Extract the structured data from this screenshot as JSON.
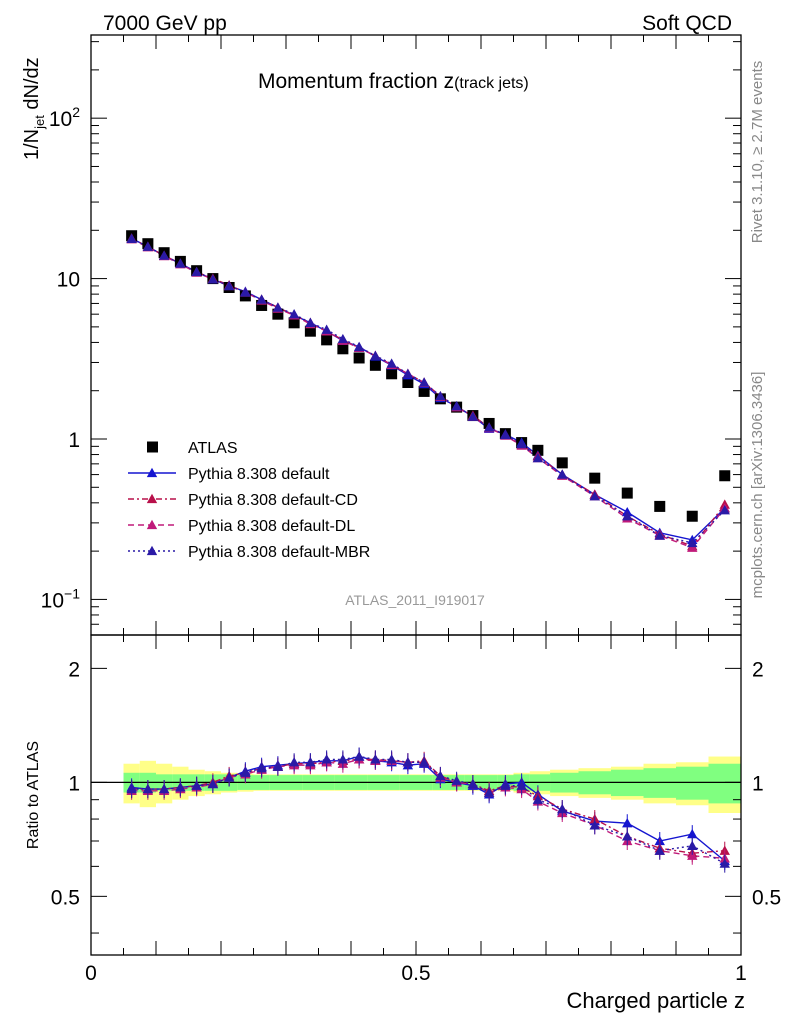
{
  "header": {
    "left": "7000 GeV pp",
    "right": "Soft QCD"
  },
  "side": {
    "rivet": "Rivet 3.1.10, ≥ 2.7M events",
    "mcplots": "mcplots.cern.ch [arXiv:1306.3436]"
  },
  "chart_data": [
    {
      "type": "scatter",
      "title": "Momentum fraction z",
      "title_sub": "(track jets)",
      "ylabel": "1/N",
      "ylabel_sub": "jet",
      "ylabel_tail": " dN/dz",
      "xlim": [
        0,
        1
      ],
      "ylim": [
        0.06,
        330
      ],
      "log_y": true,
      "ytick_labels": [
        {
          "value": 0.1,
          "base": "10",
          "exp": "−1"
        },
        {
          "value": 1,
          "base": "1",
          "exp": ""
        },
        {
          "value": 10,
          "base": "10",
          "exp": ""
        },
        {
          "value": 100,
          "base": "10",
          "exp": "2"
        }
      ],
      "watermark": "ATLAS_2011_I919017",
      "legend_position": "lower-left",
      "x": [
        0.0625,
        0.0875,
        0.1125,
        0.1375,
        0.1625,
        0.1875,
        0.2125,
        0.2375,
        0.2625,
        0.2875,
        0.3125,
        0.3375,
        0.3625,
        0.3875,
        0.4125,
        0.4375,
        0.4625,
        0.4875,
        0.5125,
        0.5375,
        0.5625,
        0.5875,
        0.6125,
        0.6375,
        0.6625,
        0.6875,
        0.725,
        0.775,
        0.825,
        0.875,
        0.925,
        0.975
      ],
      "series": [
        {
          "name": "ATLAS",
          "color": "#000000",
          "marker": "square",
          "line": "none",
          "values": [
            18.5,
            16.5,
            14.5,
            12.8,
            11.2,
            10.0,
            8.8,
            7.8,
            6.8,
            6.0,
            5.3,
            4.7,
            4.15,
            3.65,
            3.2,
            2.88,
            2.55,
            2.25,
            1.98,
            1.78,
            1.58,
            1.4,
            1.25,
            1.08,
            0.95,
            0.85,
            0.71,
            0.57,
            0.46,
            0.38,
            0.33,
            0.59
          ]
        },
        {
          "name": "Pythia 8.308 default",
          "color": "#1515d0",
          "marker": "triangle",
          "line": "solid",
          "values": [
            17.8,
            15.8,
            13.9,
            12.4,
            11.0,
            9.9,
            9.0,
            8.3,
            7.4,
            6.6,
            5.9,
            5.3,
            4.7,
            4.1,
            3.75,
            3.27,
            2.88,
            2.5,
            2.2,
            1.8,
            1.6,
            1.38,
            1.16,
            1.07,
            0.95,
            0.79,
            0.6,
            0.45,
            0.35,
            0.26,
            0.235,
            0.37
          ]
        },
        {
          "name": "Pythia 8.308 default-CD",
          "color": "#b8104a",
          "marker": "triangle",
          "line": "dashdot",
          "values": [
            17.8,
            15.8,
            13.9,
            12.4,
            11.0,
            10.0,
            9.1,
            8.2,
            7.4,
            6.6,
            5.9,
            5.3,
            4.7,
            4.15,
            3.7,
            3.3,
            2.9,
            2.55,
            2.25,
            1.85,
            1.58,
            1.4,
            1.18,
            1.06,
            0.92,
            0.78,
            0.6,
            0.45,
            0.33,
            0.255,
            0.215,
            0.39
          ]
        },
        {
          "name": "Pythia 8.308 default-DL",
          "color": "#c01a7a",
          "marker": "triangle",
          "line": "dashed",
          "values": [
            17.6,
            15.7,
            13.8,
            12.3,
            10.9,
            9.9,
            9.0,
            8.2,
            7.3,
            6.5,
            5.9,
            5.2,
            4.7,
            4.1,
            3.7,
            3.3,
            2.9,
            2.55,
            2.24,
            1.83,
            1.58,
            1.38,
            1.17,
            1.05,
            0.91,
            0.76,
            0.59,
            0.44,
            0.32,
            0.25,
            0.21,
            0.37
          ]
        },
        {
          "name": "Pythia 8.308 default-MBR",
          "color": "#2a1aa6",
          "marker": "triangle",
          "line": "dotted",
          "values": [
            17.7,
            15.8,
            13.9,
            12.4,
            11.0,
            9.9,
            9.0,
            8.2,
            7.4,
            6.6,
            6.0,
            5.3,
            4.8,
            4.2,
            3.75,
            3.3,
            2.95,
            2.55,
            2.25,
            1.85,
            1.6,
            1.38,
            1.18,
            1.06,
            0.93,
            0.76,
            0.6,
            0.44,
            0.33,
            0.25,
            0.225,
            0.36
          ]
        }
      ]
    },
    {
      "type": "scatter",
      "ylabel": "Ratio to ATLAS",
      "xlabel": "Charged particle z",
      "xlim": [
        0,
        1
      ],
      "ylim": [
        0.35,
        2.45
      ],
      "log_y": true,
      "xtick_labels": [
        {
          "value": 0,
          "label": "0"
        },
        {
          "value": 0.5,
          "label": "0.5"
        },
        {
          "value": 1,
          "label": "1"
        }
      ],
      "ytick_labels": [
        {
          "value": 0.5,
          "label": "0.5"
        },
        {
          "value": 1,
          "label": "1"
        },
        {
          "value": 2,
          "label": "2"
        }
      ],
      "band_colors": {
        "inner": "#80ff80",
        "outer": "#ffff88"
      },
      "band_inner": [
        0.06,
        0.06,
        0.05,
        0.05,
        0.05,
        0.05,
        0.05,
        0.045,
        0.045,
        0.045,
        0.045,
        0.045,
        0.045,
        0.045,
        0.045,
        0.045,
        0.045,
        0.045,
        0.045,
        0.045,
        0.045,
        0.045,
        0.045,
        0.045,
        0.05,
        0.05,
        0.06,
        0.07,
        0.08,
        0.09,
        0.1,
        0.12
      ],
      "band_outer": [
        0.12,
        0.14,
        0.12,
        0.1,
        0.08,
        0.07,
        0.06,
        0.055,
        0.05,
        0.05,
        0.05,
        0.05,
        0.05,
        0.05,
        0.05,
        0.05,
        0.05,
        0.05,
        0.05,
        0.05,
        0.05,
        0.05,
        0.05,
        0.05,
        0.06,
        0.07,
        0.08,
        0.09,
        0.1,
        0.12,
        0.13,
        0.17
      ],
      "series": [
        {
          "name": "Pythia 8.308 default",
          "color": "#1515d0",
          "line": "solid",
          "values": [
            0.97,
            0.96,
            0.96,
            0.97,
            0.98,
            0.99,
            1.03,
            1.07,
            1.1,
            1.11,
            1.12,
            1.13,
            1.14,
            1.14,
            1.17,
            1.14,
            1.13,
            1.11,
            1.12,
            1.02,
            1.0,
            0.98,
            0.93,
            0.99,
            1.0,
            0.93,
            0.84,
            0.79,
            0.78,
            0.7,
            0.73,
            0.62
          ]
        },
        {
          "name": "Pythia 8.308 default-CD",
          "color": "#b8104a",
          "line": "dashdot",
          "values": [
            0.96,
            0.96,
            0.96,
            0.97,
            0.98,
            1.0,
            1.04,
            1.06,
            1.09,
            1.1,
            1.12,
            1.12,
            1.13,
            1.14,
            1.15,
            1.15,
            1.14,
            1.13,
            1.14,
            1.04,
            1.0,
            0.99,
            0.95,
            0.98,
            0.97,
            0.92,
            0.85,
            0.8,
            0.72,
            0.67,
            0.65,
            0.66
          ]
        },
        {
          "name": "Pythia 8.308 default-DL",
          "color": "#c01a7a",
          "line": "dashed",
          "values": [
            0.95,
            0.95,
            0.95,
            0.96,
            0.97,
            0.99,
            1.03,
            1.05,
            1.08,
            1.1,
            1.11,
            1.11,
            1.13,
            1.12,
            1.15,
            1.14,
            1.14,
            1.13,
            1.13,
            1.03,
            1.0,
            0.99,
            0.94,
            0.97,
            0.96,
            0.89,
            0.83,
            0.77,
            0.7,
            0.66,
            0.64,
            0.63
          ]
        },
        {
          "name": "Pythia 8.308 default-MBR",
          "color": "#2a1aa6",
          "line": "dotted",
          "values": [
            0.96,
            0.96,
            0.96,
            0.97,
            0.98,
            0.99,
            1.03,
            1.06,
            1.09,
            1.1,
            1.13,
            1.13,
            1.15,
            1.15,
            1.17,
            1.15,
            1.15,
            1.13,
            1.13,
            1.04,
            1.01,
            0.99,
            0.94,
            0.98,
            0.98,
            0.9,
            0.85,
            0.77,
            0.72,
            0.66,
            0.68,
            0.61
          ]
        }
      ]
    }
  ]
}
